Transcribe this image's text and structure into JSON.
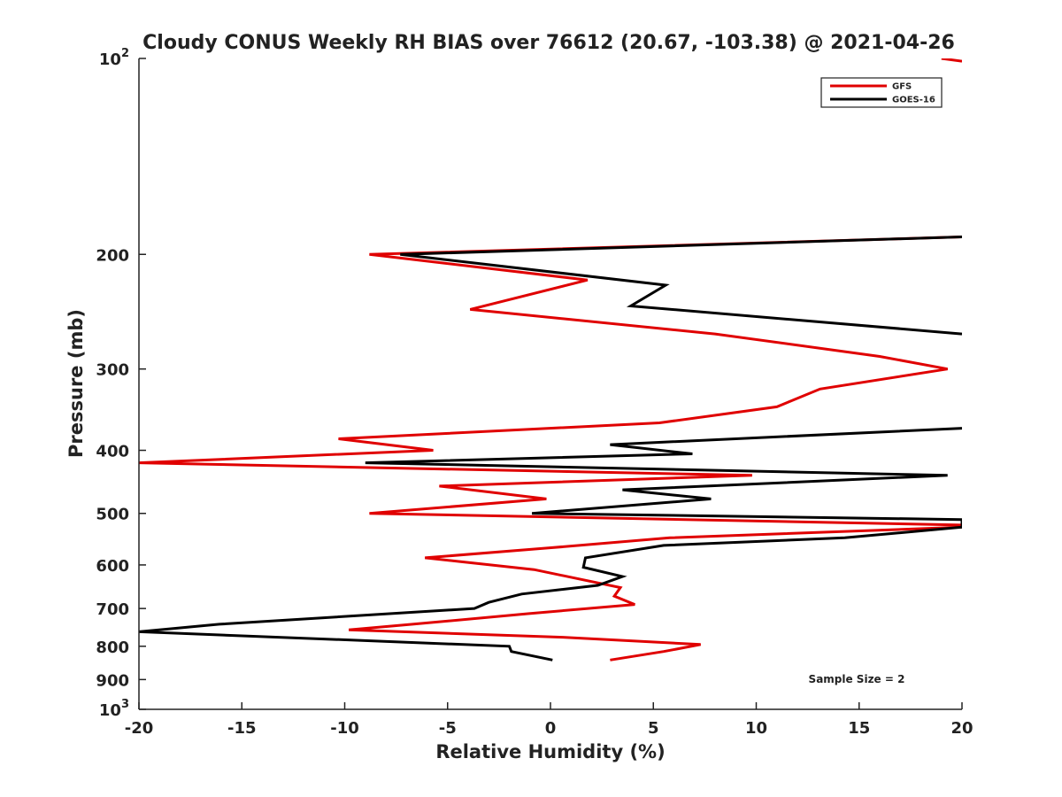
{
  "chart_data": {
    "type": "line",
    "title": "Cloudy CONUS Weekly RH BIAS over 76612 (20.67, -103.38) @ 2021-04-26",
    "xlabel": "Relative Humidity (%)",
    "ylabel": "Pressure (mb)",
    "xlim": [
      -20,
      20
    ],
    "ylim": [
      100,
      1000
    ],
    "yscale": "log",
    "y_reversed": true,
    "grid": false,
    "legend_position": "top-right",
    "x_ticks": [
      -20,
      -15,
      -10,
      -5,
      0,
      5,
      10,
      15,
      20
    ],
    "x_tick_labels": [
      "-20",
      "-15",
      "-10",
      "-5",
      "0",
      "5",
      "10",
      "15",
      "20"
    ],
    "y_ticks": [
      100,
      200,
      300,
      400,
      500,
      600,
      700,
      800,
      900,
      1000
    ],
    "y_tick_labels": [
      {
        "base": "10",
        "exp": "2"
      },
      {
        "base": "200"
      },
      {
        "base": "300"
      },
      {
        "base": "400"
      },
      {
        "base": "500"
      },
      {
        "base": "600"
      },
      {
        "base": "700"
      },
      {
        "base": "800"
      },
      {
        "base": "900"
      },
      {
        "base": "10",
        "exp": "3"
      }
    ],
    "annotation": "Sample Size = 2",
    "series": [
      {
        "name": "GFS",
        "color": "#e00000",
        "segments": [
          [
            [
              19.0,
              100
            ],
            [
              20.0,
              101
            ]
          ],
          [
            [
              20.0,
              188
            ],
            [
              -8.8,
              200
            ],
            [
              1.8,
              219
            ],
            [
              -3.9,
              243
            ],
            [
              8.0,
              265
            ],
            [
              16.0,
              287
            ],
            [
              19.3,
              300
            ],
            [
              13.1,
              322
            ],
            [
              11.0,
              343
            ],
            [
              5.3,
              363
            ],
            [
              -10.3,
              384
            ],
            [
              -5.7,
              400
            ],
            [
              -20.0,
              418
            ],
            [
              9.8,
              437
            ],
            [
              -5.4,
              454
            ],
            [
              -0.2,
              475
            ],
            [
              -8.8,
              500
            ],
            [
              20.0,
              521
            ],
            [
              20.0,
              525
            ],
            [
              5.8,
              545
            ],
            [
              -0.1,
              565
            ],
            [
              -6.1,
              585
            ],
            [
              -0.8,
              610
            ],
            [
              3.4,
              650
            ],
            [
              3.1,
              670
            ],
            [
              4.1,
              690
            ],
            [
              -1.1,
              713
            ],
            [
              -6.7,
              740
            ],
            [
              -9.8,
              755
            ],
            [
              0.6,
              775
            ],
            [
              7.3,
              795
            ],
            [
              5.5,
              815
            ],
            [
              2.9,
              840
            ]
          ]
        ]
      },
      {
        "name": "GOES-16",
        "color": "#000000",
        "segments": [
          [
            [
              20.0,
              188
            ],
            [
              -7.3,
              200
            ],
            [
              5.6,
              223
            ],
            [
              3.9,
              240
            ],
            [
              20.0,
              265
            ]
          ],
          [
            [
              20.0,
              370
            ],
            [
              2.9,
              392
            ],
            [
              6.9,
              405
            ],
            [
              -9.0,
              418
            ],
            [
              19.3,
              437
            ],
            [
              3.5,
              460
            ],
            [
              7.8,
              475
            ],
            [
              -0.9,
              500
            ],
            [
              20.0,
              511
            ],
            [
              20.0,
              525
            ],
            [
              14.3,
              545
            ],
            [
              5.5,
              560
            ],
            [
              1.7,
              585
            ],
            [
              1.6,
              605
            ],
            [
              3.5,
              625
            ],
            [
              2.3,
              645
            ],
            [
              -1.4,
              665
            ],
            [
              -3.0,
              685
            ],
            [
              -3.7,
              700
            ],
            [
              -16.1,
              740
            ],
            [
              -20.0,
              760
            ],
            [
              -2.0,
              800
            ],
            [
              -1.9,
              815
            ],
            [
              0.1,
              840
            ]
          ]
        ]
      }
    ]
  }
}
